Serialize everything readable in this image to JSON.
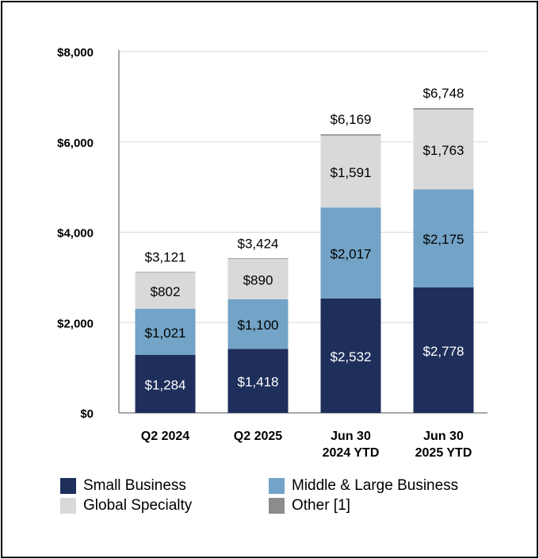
{
  "chart_data": {
    "type": "bar",
    "stacked": true,
    "categories": [
      [
        "Q2 2024"
      ],
      [
        "Q2 2025"
      ],
      [
        "Jun 30",
        "2024 YTD"
      ],
      [
        "Jun 30",
        "2025 YTD"
      ]
    ],
    "series": [
      {
        "name": "Small Business",
        "color": "#1f2f5c",
        "label_color": "#ffffff",
        "values": [
          1284,
          1418,
          2532,
          2778
        ],
        "labels": [
          "$1,284",
          "$1,418",
          "$2,532",
          "$2,778"
        ]
      },
      {
        "name": "Middle & Large Business",
        "color": "#73a3c6",
        "label_color": "#000000",
        "values": [
          1021,
          1100,
          2017,
          2175
        ],
        "labels": [
          "$1,021",
          "$1,100",
          "$2,017",
          "$2,175"
        ]
      },
      {
        "name": "Global Specialty",
        "color": "#d9d9d9",
        "label_color": "#000000",
        "values": [
          802,
          890,
          1591,
          1763
        ],
        "labels": [
          "$802",
          "$890",
          "$1,591",
          "$1,763"
        ]
      },
      {
        "name": "Other [1]",
        "color": "#8c8c8c",
        "label_color": "#000000",
        "values": [
          14,
          16,
          29,
          32
        ],
        "labels": [
          "",
          "",
          "",
          ""
        ]
      }
    ],
    "totals": [
      3121,
      3424,
      6169,
      6748
    ],
    "total_labels": [
      "$3,121",
      "$3,424",
      "$6,169",
      "$6,748"
    ],
    "ylim": [
      0,
      8000
    ],
    "yticks": [
      0,
      2000,
      4000,
      6000,
      8000
    ],
    "ytick_labels": [
      "$0",
      "$2,000",
      "$4,000",
      "$6,000",
      "$8,000"
    ],
    "grid": true,
    "legend_position": "bottom",
    "title": "",
    "xlabel": "",
    "ylabel": ""
  }
}
